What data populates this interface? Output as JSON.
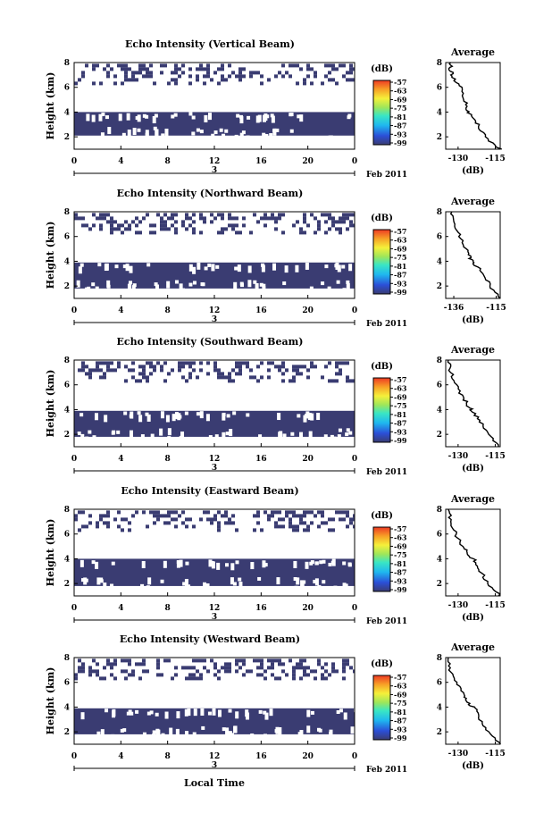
{
  "common": {
    "ylabel": "Height (km)",
    "avg_title": "Average",
    "avg_xlabel": "(dB)",
    "cb_unit": "(dB)",
    "cb_ticks": [
      "-57",
      "-63",
      "-69",
      "-75",
      "-81",
      "-87",
      "-93",
      "-99"
    ],
    "x_ticks": [
      "0",
      "4",
      "8",
      "12",
      "16",
      "20",
      "0"
    ],
    "y_ticks": [
      "2",
      "4",
      "6",
      "8"
    ],
    "date_day": "3",
    "date_suffix": "Feb 2011",
    "xlabel": "Local Time",
    "colors": {
      "echo": "#3a3c72",
      "line": "#000000"
    }
  },
  "chart_data": [
    {
      "type": "heatmap",
      "title": "Echo Intensity (Vertical Beam)",
      "xlim": [
        0,
        24
      ],
      "ylim": [
        1,
        8
      ],
      "layers": [
        {
          "y": [
            2.1,
            4.0
          ],
          "x": [
            0,
            24
          ]
        },
        {
          "y": [
            6.3,
            7.9
          ],
          "x": [
            0,
            24
          ],
          "sparse": true
        }
      ],
      "avg": {
        "xlim": [
          -135,
          -113
        ],
        "xticks": [
          "-130",
          "-115"
        ],
        "profile": [
          [
            -113,
            1
          ],
          [
            -119,
            2
          ],
          [
            -122,
            3
          ],
          [
            -125,
            3.7
          ],
          [
            -126,
            4.2
          ],
          [
            -127,
            5
          ],
          [
            -129,
            6
          ],
          [
            -132,
            6.8
          ],
          [
            -133,
            7.4
          ],
          [
            -133,
            8
          ]
        ]
      }
    },
    {
      "type": "heatmap",
      "title": "Echo Intensity (Northward Beam)",
      "xlim": [
        0,
        24
      ],
      "ylim": [
        1,
        8
      ],
      "layers": [
        {
          "y": [
            1.8,
            3.9
          ],
          "x": [
            0,
            24
          ]
        },
        {
          "y": [
            6.2,
            7.9
          ],
          "x": [
            0,
            24
          ],
          "sparse": true
        }
      ],
      "avg": {
        "xlim": [
          -140,
          -113
        ],
        "xticks": [
          "-136",
          "-115"
        ],
        "profile": [
          [
            -113,
            1
          ],
          [
            -118,
            2
          ],
          [
            -121,
            3
          ],
          [
            -126,
            3.8
          ],
          [
            -128,
            4.3
          ],
          [
            -130,
            5
          ],
          [
            -133,
            6
          ],
          [
            -136,
            7
          ],
          [
            -137,
            8
          ]
        ]
      }
    },
    {
      "type": "heatmap",
      "title": "Echo Intensity (Southward Beam)",
      "xlim": [
        0,
        24
      ],
      "ylim": [
        1,
        8
      ],
      "layers": [
        {
          "y": [
            1.8,
            3.9
          ],
          "x": [
            0,
            24
          ]
        },
        {
          "y": [
            6.3,
            7.9
          ],
          "x": [
            0,
            24
          ],
          "sparse": true
        }
      ],
      "avg": {
        "xlim": [
          -135,
          -113
        ],
        "xticks": [
          "-130",
          "-115"
        ],
        "profile": [
          [
            -113,
            1
          ],
          [
            -118,
            2
          ],
          [
            -121,
            3
          ],
          [
            -124,
            3.8
          ],
          [
            -126,
            4.3
          ],
          [
            -128,
            5
          ],
          [
            -131,
            6
          ],
          [
            -133,
            7
          ],
          [
            -134,
            8
          ]
        ]
      }
    },
    {
      "type": "heatmap",
      "title": "Echo Intensity (Eastward Beam)",
      "xlim": [
        0,
        24
      ],
      "ylim": [
        1,
        8
      ],
      "layers": [
        {
          "y": [
            1.8,
            4.0
          ],
          "x": [
            0,
            24
          ]
        },
        {
          "y": [
            6.2,
            7.9
          ],
          "x": [
            0,
            24
          ],
          "sparse": true
        }
      ],
      "avg": {
        "xlim": [
          -135,
          -113
        ],
        "xticks": [
          "-130",
          "-115"
        ],
        "profile": [
          [
            -113,
            1
          ],
          [
            -118,
            2
          ],
          [
            -121,
            3
          ],
          [
            -123,
            3.8
          ],
          [
            -126,
            4.4
          ],
          [
            -128,
            5
          ],
          [
            -131,
            6
          ],
          [
            -133,
            7
          ],
          [
            -134,
            8
          ]
        ]
      }
    },
    {
      "type": "heatmap",
      "title": "Echo Intensity (Westward Beam)",
      "xlim": [
        0,
        24
      ],
      "ylim": [
        1,
        8
      ],
      "layers": [
        {
          "y": [
            1.8,
            3.9
          ],
          "x": [
            0,
            24
          ]
        },
        {
          "y": [
            6.3,
            7.9
          ],
          "x": [
            0,
            24
          ],
          "sparse": true
        }
      ],
      "avg": {
        "xlim": [
          -135,
          -113
        ],
        "xticks": [
          "-130",
          "-115"
        ],
        "profile": [
          [
            -113,
            1
          ],
          [
            -118,
            2
          ],
          [
            -121,
            3
          ],
          [
            -123,
            3.8
          ],
          [
            -126,
            4.4
          ],
          [
            -128,
            5
          ],
          [
            -131,
            6
          ],
          [
            -133,
            7
          ],
          [
            -134,
            8
          ]
        ]
      }
    }
  ]
}
